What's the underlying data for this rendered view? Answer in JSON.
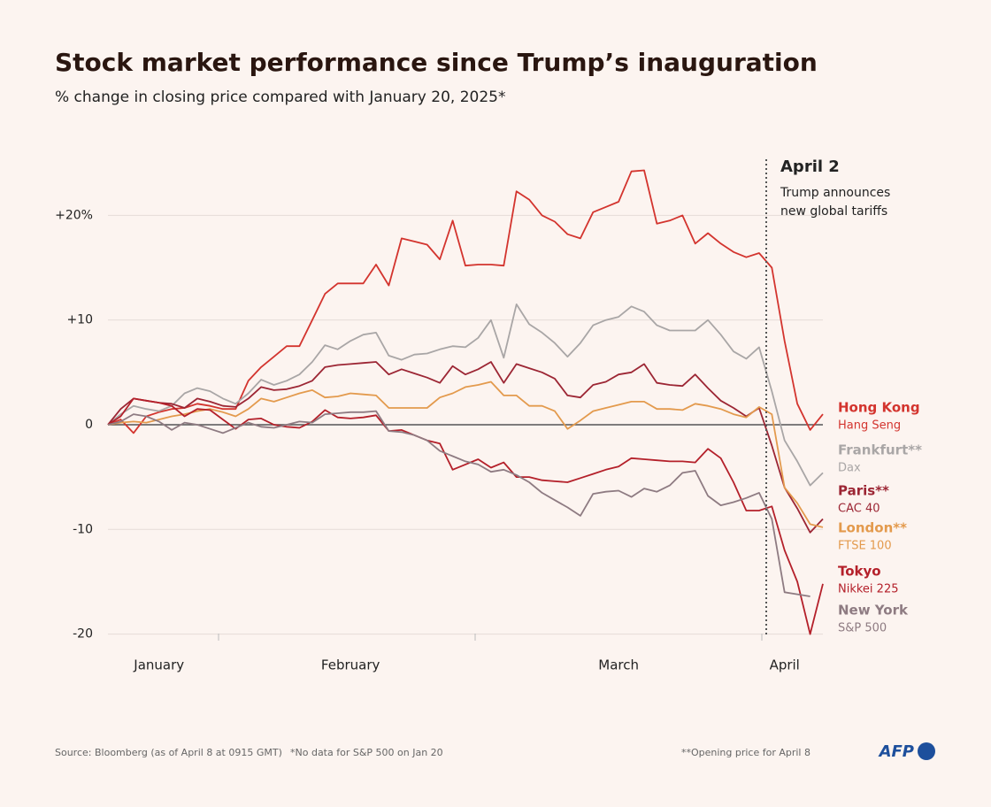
{
  "chart_data": {
    "type": "line",
    "title": "Stock market performance since Trump’s inauguration",
    "subtitle": "% change in closing price compared with January 20, 2025*",
    "categories": [
      null,
      null,
      null,
      null,
      "January",
      null,
      null,
      null,
      null,
      null,
      null,
      null,
      null,
      null,
      null,
      null,
      null,
      null,
      null,
      "February",
      null,
      null,
      null,
      null,
      null,
      null,
      null,
      null,
      null,
      null,
      null,
      null,
      null,
      null,
      null,
      null,
      null,
      null,
      null,
      null,
      "March",
      null,
      null,
      null,
      null,
      null,
      null,
      null,
      null,
      null,
      null,
      null,
      null,
      "April",
      null,
      null,
      null
    ],
    "ylim": [
      -20.5,
      25.5
    ],
    "yticks": [
      {
        "value": 20,
        "label": "+20%"
      },
      {
        "value": 10,
        "label": "+10"
      },
      0,
      -10,
      -20
    ],
    "grid": true,
    "annotation": {
      "label": "April 2",
      "text": [
        "Trump announces",
        "new global tariffs"
      ]
    },
    "series": [
      {
        "name": "Hong Kong",
        "index": "Hang Seng",
        "color": "#d3342e",
        "values": [
          0,
          0.5,
          -0.8,
          0.8,
          1.2,
          1.5,
          1.6,
          2,
          1.8,
          1.5,
          1.5,
          4.2,
          5.5,
          6.5,
          7.5,
          7.5,
          10,
          12.5,
          13.5,
          13.5,
          13.5,
          15.3,
          13.3,
          17.8,
          17.5,
          17.2,
          15.8,
          19.5,
          15.2,
          15.3,
          15.3,
          15.2,
          22.3,
          21.5,
          20,
          19.4,
          18.2,
          17.8,
          20.3,
          20.8,
          21.3,
          24.2,
          24.3,
          19.2,
          19.5,
          20,
          17.3,
          18.3,
          17.3,
          16.5,
          16,
          16.4,
          15,
          8,
          2,
          -0.5,
          1
        ]
      },
      {
        "name": "Frankfurt**",
        "index": "Dax",
        "color": "#a9a6a6",
        "values": [
          0,
          1,
          1.8,
          1.5,
          1.3,
          1.8,
          3,
          3.5,
          3.2,
          2.5,
          2,
          3,
          4.3,
          3.8,
          4.2,
          4.8,
          6,
          7.6,
          7.2,
          8,
          8.6,
          8.8,
          6.6,
          6.2,
          6.7,
          6.8,
          7.2,
          7.5,
          7.4,
          8.3,
          10,
          6.4,
          11.5,
          9.6,
          8.8,
          7.8,
          6.5,
          7.8,
          9.5,
          10,
          10.3,
          11.3,
          10.8,
          9.5,
          9,
          9,
          9,
          10,
          8.6,
          7,
          6.3,
          7.4,
          3.2,
          -1.5,
          -3.5,
          -5.8,
          -4.6
        ]
      },
      {
        "name": "Paris**",
        "index": "CAC 40",
        "color": "#9c2634",
        "values": [
          0,
          1.5,
          2.5,
          2.3,
          2.1,
          2,
          1.6,
          2.5,
          2.2,
          1.8,
          1.7,
          2.5,
          3.6,
          3.3,
          3.4,
          3.7,
          4.2,
          5.5,
          5.7,
          5.8,
          5.9,
          6,
          4.8,
          5.3,
          4.9,
          4.5,
          4,
          5.6,
          4.8,
          5.3,
          6,
          4,
          5.8,
          5.4,
          5,
          4.4,
          2.8,
          2.6,
          3.8,
          4.1,
          4.8,
          5,
          5.8,
          4,
          3.8,
          3.7,
          4.8,
          3.5,
          2.3,
          1.6,
          0.8,
          1.6,
          -2,
          -6,
          -8,
          -10.3,
          -9
        ]
      },
      {
        "name": "London**",
        "index": "FTSE 100",
        "color": "#e39a4d",
        "values": [
          0,
          0.2,
          0.3,
          0.2,
          0.5,
          0.8,
          1,
          1.3,
          1.5,
          1.2,
          0.8,
          1.5,
          2.5,
          2.2,
          2.6,
          3,
          3.3,
          2.6,
          2.7,
          3,
          2.9,
          2.8,
          1.6,
          1.6,
          1.6,
          1.6,
          2.6,
          3,
          3.6,
          3.8,
          4.1,
          2.8,
          2.8,
          1.8,
          1.8,
          1.3,
          -0.4,
          0.4,
          1.3,
          1.6,
          1.9,
          2.2,
          2.2,
          1.5,
          1.5,
          1.4,
          2,
          1.8,
          1.5,
          1,
          0.7,
          1.7,
          1,
          -6,
          -7.5,
          -9.5,
          -9.8
        ]
      },
      {
        "name": "Tokyo",
        "index": "Nikkei 225",
        "color": "#b4202a",
        "values": [
          0,
          0.8,
          2.5,
          2.3,
          2.1,
          1.8,
          0.8,
          1.5,
          1.4,
          0.5,
          -0.4,
          0.5,
          0.6,
          0,
          -0.2,
          -0.3,
          0.3,
          1.4,
          0.7,
          0.6,
          0.7,
          0.9,
          -0.6,
          -0.5,
          -1,
          -1.5,
          -1.8,
          -4.3,
          -3.8,
          -3.3,
          -4.1,
          -3.6,
          -5,
          -5,
          -5.3,
          -5.4,
          -5.5,
          -5.1,
          -4.7,
          -4.3,
          -4,
          -3.2,
          -3.3,
          -3.4,
          -3.5,
          -3.5,
          -3.6,
          -2.3,
          -3.2,
          -5.5,
          -8.2,
          -8.2,
          -7.8,
          -12,
          -15,
          -20,
          -15.2
        ]
      },
      {
        "name": "New York",
        "index": "S&P 500",
        "color": "#8e7b82",
        "values": [
          0,
          0.3,
          1,
          0.8,
          0.3,
          -0.5,
          0.2,
          0,
          -0.4,
          -0.8,
          -0.3,
          0.2,
          -0.2,
          -0.3,
          0,
          0.3,
          0.2,
          1,
          1.1,
          1.2,
          1.2,
          1.3,
          -0.6,
          -0.7,
          -1,
          -1.5,
          -2.5,
          -3,
          -3.5,
          -3.8,
          -4.5,
          -4.3,
          -4.8,
          -5.5,
          -6.5,
          -7.2,
          -7.9,
          -8.7,
          -6.6,
          -6.4,
          -6.3,
          -6.9,
          -6.1,
          -6.4,
          -5.8,
          -4.6,
          -4.4,
          -6.8,
          -7.7,
          -7.4,
          -7,
          -6.5,
          -9,
          -16,
          -16.2,
          -16.4,
          null
        ]
      }
    ],
    "source": "Source: Bloomberg (as of April 8 at 0915 GMT)",
    "note": "*No data for S&P 500 on Jan 20",
    "note2": "**Opening price for April 8",
    "logo": "AFP"
  }
}
